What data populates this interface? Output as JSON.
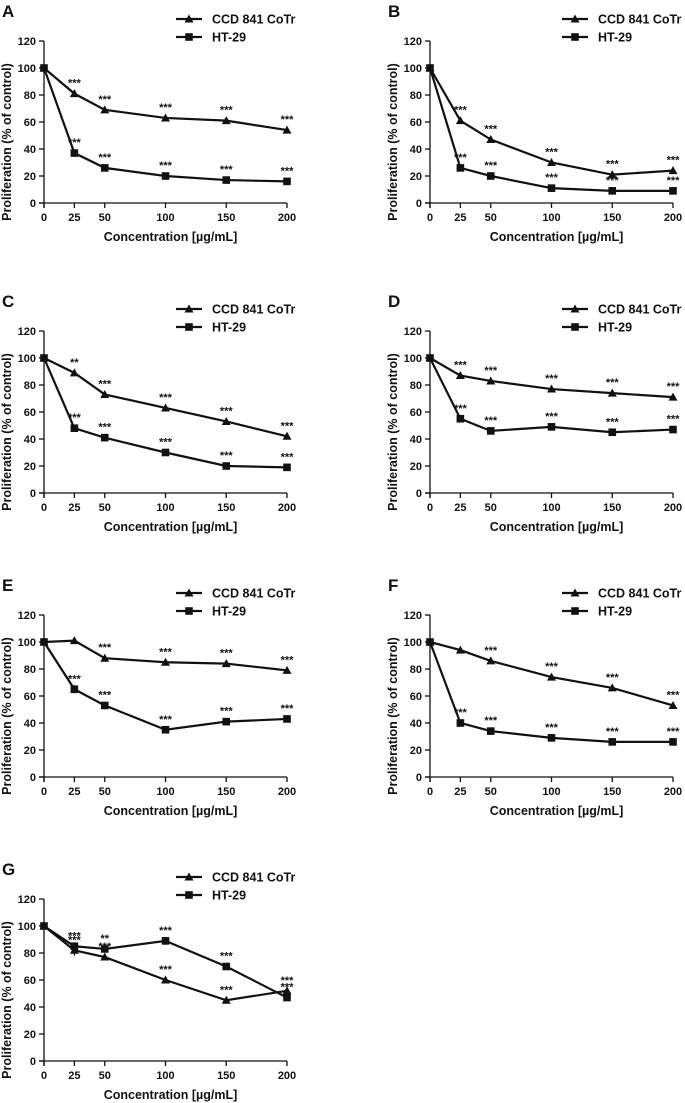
{
  "figure": {
    "series_names": [
      "CCD 841 CoTr",
      "HT-29"
    ],
    "marker_shapes": [
      "triangle",
      "square"
    ],
    "line_color": "#111111"
  },
  "chart_data": [
    {
      "type": "line",
      "label": "A",
      "x": [
        0,
        25,
        50,
        100,
        150,
        200
      ],
      "xticks": [
        "0",
        "25",
        "50",
        "100",
        "150",
        "200"
      ],
      "yticks": [
        "0",
        "20",
        "40",
        "60",
        "80",
        "100",
        "120"
      ],
      "ylim": [
        0,
        120
      ],
      "xlabel": "Concentration [µg/mL]",
      "ylabel": "Proliferation (% of control)",
      "series": [
        {
          "name": "CCD 841 CoTr",
          "values": [
            100,
            81,
            69,
            63,
            61,
            54
          ],
          "err": [
            1.5,
            1.5,
            1.2,
            1.2,
            1.5,
            1.5
          ],
          "sig": [
            "",
            "***",
            "***",
            "***",
            "***",
            "***"
          ]
        },
        {
          "name": "HT-29",
          "values": [
            100,
            37,
            26,
            20,
            17,
            16
          ],
          "err": [
            1.5,
            1.5,
            1.2,
            1.0,
            1.0,
            1.0
          ],
          "sig": [
            "",
            "***",
            "***",
            "***",
            "***",
            "***"
          ]
        }
      ]
    },
    {
      "type": "line",
      "label": "B",
      "x": [
        0,
        25,
        50,
        100,
        150,
        200
      ],
      "xticks": [
        "0",
        "25",
        "50",
        "100",
        "150",
        "200"
      ],
      "yticks": [
        "0",
        "20",
        "40",
        "60",
        "80",
        "100",
        "120"
      ],
      "ylim": [
        0,
        120
      ],
      "xlabel": "Concentration [µg/mL]",
      "ylabel": "Proliferation (% of control)",
      "series": [
        {
          "name": "CCD 841 CoTr",
          "values": [
            100,
            61,
            47,
            30,
            21,
            24
          ],
          "err": [
            1.5,
            1.5,
            1.2,
            1.2,
            1.0,
            1.0
          ],
          "sig": [
            "",
            "***",
            "***",
            "***",
            "***",
            "***"
          ]
        },
        {
          "name": "HT-29",
          "values": [
            100,
            26,
            20,
            11,
            9,
            9
          ],
          "err": [
            1.5,
            1.5,
            1.0,
            1.0,
            1.0,
            1.0
          ],
          "sig": [
            "",
            "***",
            "***",
            "***",
            "***",
            "***"
          ]
        }
      ]
    },
    {
      "type": "line",
      "label": "C",
      "x": [
        0,
        25,
        50,
        100,
        150,
        200
      ],
      "xticks": [
        "0",
        "25",
        "50",
        "100",
        "150",
        "200"
      ],
      "yticks": [
        "0",
        "20",
        "40",
        "60",
        "80",
        "100",
        "120"
      ],
      "ylim": [
        0,
        120
      ],
      "xlabel": "Concentration [µg/mL]",
      "ylabel": "Proliferation (% of control)",
      "series": [
        {
          "name": "CCD 841 CoTr",
          "values": [
            100,
            89,
            73,
            63,
            53,
            42
          ],
          "err": [
            1.5,
            1.5,
            1.2,
            1.2,
            1.0,
            1.0
          ],
          "sig": [
            "",
            "**",
            "***",
            "***",
            "***",
            "***"
          ]
        },
        {
          "name": "HT-29",
          "values": [
            100,
            48,
            41,
            30,
            20,
            19
          ],
          "err": [
            1.5,
            1.5,
            1.2,
            1.0,
            1.0,
            1.0
          ],
          "sig": [
            "",
            "***",
            "***",
            "***",
            "***",
            "***"
          ]
        }
      ]
    },
    {
      "type": "line",
      "label": "D",
      "x": [
        0,
        25,
        50,
        100,
        150,
        200
      ],
      "xticks": [
        "0",
        "25",
        "50",
        "100",
        "150",
        "200"
      ],
      "yticks": [
        "0",
        "20",
        "40",
        "60",
        "80",
        "100",
        "120"
      ],
      "ylim": [
        0,
        120
      ],
      "xlabel": "Concentration [µg/mL]",
      "ylabel": "Proliferation (% of control)",
      "series": [
        {
          "name": "CCD 841 CoTr",
          "values": [
            100,
            87,
            83,
            77,
            74,
            71
          ],
          "err": [
            1.5,
            1.5,
            2.5,
            1.2,
            1.2,
            1.2
          ],
          "sig": [
            "",
            "***",
            "***",
            "***",
            "***",
            "***"
          ]
        },
        {
          "name": "HT-29",
          "values": [
            100,
            55,
            46,
            49,
            45,
            47
          ],
          "err": [
            1.5,
            1.5,
            1.5,
            1.5,
            2.5,
            2.0
          ],
          "sig": [
            "",
            "***",
            "***",
            "***",
            "***",
            "***"
          ]
        }
      ]
    },
    {
      "type": "line",
      "label": "E",
      "x": [
        0,
        25,
        50,
        100,
        150,
        200
      ],
      "xticks": [
        "0",
        "25",
        "50",
        "100",
        "150",
        "200"
      ],
      "yticks": [
        "0",
        "20",
        "40",
        "60",
        "80",
        "100",
        "120"
      ],
      "ylim": [
        0,
        120
      ],
      "xlabel": "Concentration [µg/mL]",
      "ylabel": "Proliferation (% of control)",
      "series": [
        {
          "name": "CCD 841 CoTr",
          "values": [
            100,
            101,
            88,
            85,
            84,
            79
          ],
          "err": [
            1.5,
            2.5,
            1.2,
            1.2,
            1.2,
            1.2
          ],
          "sig": [
            "",
            "",
            "***",
            "***",
            "***",
            "***"
          ]
        },
        {
          "name": "HT-29",
          "values": [
            100,
            65,
            53,
            35,
            41,
            43
          ],
          "err": [
            1.5,
            3.0,
            2.5,
            1.2,
            1.2,
            1.2
          ],
          "sig": [
            "",
            "***",
            "***",
            "***",
            "***",
            "***"
          ]
        }
      ]
    },
    {
      "type": "line",
      "label": "F",
      "x": [
        0,
        25,
        50,
        100,
        150,
        200
      ],
      "xticks": [
        "0",
        "25",
        "50",
        "100",
        "150",
        "200"
      ],
      "yticks": [
        "0",
        "20",
        "40",
        "60",
        "80",
        "100",
        "120"
      ],
      "ylim": [
        0,
        120
      ],
      "xlabel": "Concentration [µg/mL]",
      "ylabel": "Proliferation (% of control)",
      "series": [
        {
          "name": "CCD 841 CoTr",
          "values": [
            100,
            94,
            86,
            74,
            66,
            53
          ],
          "err": [
            2.5,
            2.5,
            1.2,
            1.2,
            1.2,
            1.2
          ],
          "sig": [
            "",
            "",
            "***",
            "***",
            "***",
            "***"
          ]
        },
        {
          "name": "HT-29",
          "values": [
            100,
            40,
            34,
            29,
            26,
            26
          ],
          "err": [
            2.5,
            1.5,
            1.2,
            1.0,
            1.0,
            1.0
          ],
          "sig": [
            "",
            "***",
            "***",
            "***",
            "***",
            "***"
          ]
        }
      ]
    },
    {
      "type": "line",
      "label": "G",
      "x": [
        0,
        25,
        50,
        100,
        150,
        200
      ],
      "xticks": [
        "0",
        "25",
        "50",
        "100",
        "150",
        "200"
      ],
      "yticks": [
        "0",
        "20",
        "40",
        "60",
        "80",
        "100",
        "120"
      ],
      "ylim": [
        0,
        120
      ],
      "xlabel": "Concentration [µg/mL]",
      "ylabel": "Proliferation (% of control)",
      "series": [
        {
          "name": "CCD 841 CoTr",
          "values": [
            100,
            82,
            77,
            60,
            45,
            52
          ],
          "err": [
            1.5,
            4.0,
            1.5,
            1.2,
            1.2,
            1.2
          ],
          "sig": [
            "",
            "***",
            "***",
            "***",
            "***",
            "***"
          ]
        },
        {
          "name": "HT-29",
          "values": [
            100,
            85,
            83,
            89,
            70,
            47
          ],
          "err": [
            1.5,
            2.0,
            1.5,
            3.0,
            1.5,
            1.2
          ],
          "sig": [
            "",
            "***",
            "**",
            "***",
            "***",
            "***"
          ]
        }
      ]
    }
  ]
}
